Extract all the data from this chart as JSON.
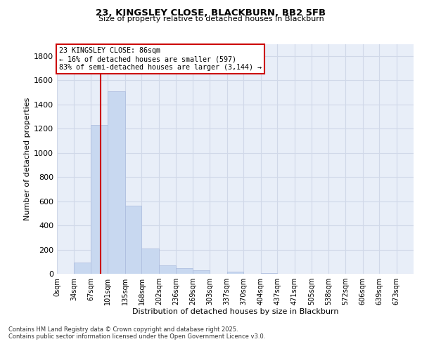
{
  "title1": "23, KINGSLEY CLOSE, BLACKBURN, BB2 5FB",
  "title2": "Size of property relative to detached houses in Blackburn",
  "xlabel": "Distribution of detached houses by size in Blackburn",
  "ylabel": "Number of detached properties",
  "bar_labels": [
    "0sqm",
    "34sqm",
    "67sqm",
    "101sqm",
    "135sqm",
    "168sqm",
    "202sqm",
    "236sqm",
    "269sqm",
    "303sqm",
    "337sqm",
    "370sqm",
    "404sqm",
    "437sqm",
    "471sqm",
    "505sqm",
    "538sqm",
    "572sqm",
    "606sqm",
    "639sqm",
    "673sqm"
  ],
  "bar_values": [
    0,
    90,
    1230,
    1510,
    565,
    210,
    68,
    47,
    30,
    0,
    20,
    0,
    5,
    0,
    0,
    0,
    0,
    0,
    0,
    0,
    0
  ],
  "bar_color": "#c8d8f0",
  "bar_edge_color": "#aabbdd",
  "ylim": [
    0,
    1900
  ],
  "yticks": [
    0,
    200,
    400,
    600,
    800,
    1000,
    1200,
    1400,
    1600,
    1800
  ],
  "property_sqm": 86,
  "bin_edges": [
    0,
    34,
    67,
    101,
    135,
    168,
    202,
    236,
    269,
    303,
    337,
    370,
    404,
    437,
    471,
    505,
    538,
    572,
    606,
    639,
    673,
    707
  ],
  "annotation_title": "23 KINGSLEY CLOSE: 86sqm",
  "annotation_line1": "← 16% of detached houses are smaller (597)",
  "annotation_line2": "83% of semi-detached houses are larger (3,144) →",
  "annotation_box_color": "#ffffff",
  "annotation_box_edge": "#cc0000",
  "line_color": "#cc0000",
  "grid_color": "#d0d8e8",
  "background_color": "#e8eef8",
  "footer1": "Contains HM Land Registry data © Crown copyright and database right 2025.",
  "footer2": "Contains public sector information licensed under the Open Government Licence v3.0."
}
